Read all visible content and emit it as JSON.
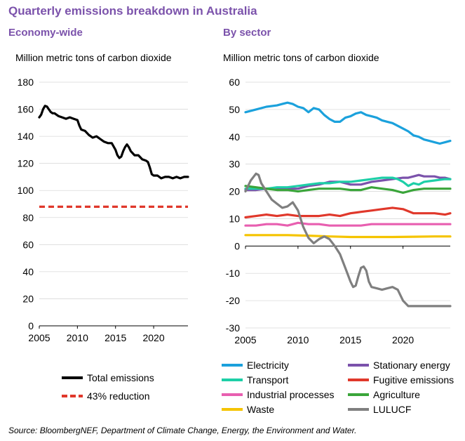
{
  "title": "Quarterly emissions breakdown in Australia",
  "source": "Source: BloombergNEF, Department of Climate Change, Energy, the Environment and Water.",
  "chart_data": [
    {
      "type": "line",
      "title": "Economy-wide",
      "ylabel": "Million metric tons of carbon dioxide",
      "xlabel": "",
      "xlim": [
        2005,
        2024.5
      ],
      "ylim": [
        0,
        180
      ],
      "xticks": [
        "2005",
        "2010",
        "2015",
        "2020"
      ],
      "yticks": [
        "0",
        "20",
        "40",
        "60",
        "80",
        "100",
        "120",
        "140",
        "160",
        "180"
      ],
      "grid": true,
      "legend": "bottom",
      "series": [
        {
          "name": "Total emissions",
          "color": "#000000",
          "style": "solid",
          "x": [
            2005,
            2005.25,
            2005.5,
            2005.75,
            2006,
            2006.25,
            2006.5,
            2006.75,
            2007,
            2007.5,
            2008,
            2008.5,
            2009,
            2009.5,
            2010,
            2010.25,
            2010.5,
            2011,
            2011.5,
            2012,
            2012.5,
            2013,
            2013.5,
            2014,
            2014.5,
            2015,
            2015.25,
            2015.5,
            2015.75,
            2016,
            2016.25,
            2016.5,
            2016.75,
            2017,
            2017.5,
            2018,
            2018.5,
            2019,
            2019.25,
            2019.5,
            2019.75,
            2020,
            2020.25,
            2020.5,
            2021,
            2021.5,
            2022,
            2022.5,
            2023,
            2023.5,
            2024,
            2024.5
          ],
          "values": [
            154,
            156,
            160,
            162.5,
            162,
            160,
            158,
            157,
            157,
            155,
            154,
            153,
            154,
            153,
            152,
            148,
            145,
            144,
            141,
            139,
            140,
            138,
            136,
            135,
            135,
            130,
            126,
            124,
            125,
            129,
            132,
            134,
            132,
            129,
            126,
            126,
            123,
            122,
            121,
            117,
            112,
            111,
            111,
            111,
            109,
            110,
            110,
            109,
            110,
            109,
            110,
            110
          ]
        },
        {
          "name": "43% reduction",
          "color": "#e0382b",
          "style": "dashed",
          "x": [
            2005,
            2024.5
          ],
          "values": [
            88,
            88
          ]
        }
      ]
    },
    {
      "type": "line",
      "title": "By sector",
      "ylabel": "Million metric tons of carbon dioxide",
      "xlabel": "",
      "xlim": [
        2005,
        2024.5
      ],
      "ylim": [
        -30,
        60
      ],
      "xticks": [
        "2005",
        "2010",
        "2015",
        "2020"
      ],
      "yticks": [
        "-30",
        "-20",
        "-10",
        "0",
        "10",
        "20",
        "30",
        "40",
        "50",
        "60"
      ],
      "grid": true,
      "legend": "bottom",
      "series": [
        {
          "name": "Electricity",
          "color": "#1ba1dc",
          "x": [
            2005,
            2006,
            2007,
            2008,
            2008.5,
            2009,
            2009.5,
            2010,
            2010.5,
            2011,
            2011.5,
            2012,
            2012.5,
            2013,
            2013.5,
            2014,
            2014.5,
            2015,
            2015.5,
            2016,
            2016.5,
            2017,
            2017.5,
            2018,
            2018.5,
            2019,
            2019.5,
            2020,
            2020.5,
            2021,
            2021.5,
            2022,
            2022.5,
            2023,
            2023.5,
            2024,
            2024.5
          ],
          "values": [
            49,
            50,
            51,
            51.5,
            52,
            52.5,
            52,
            51,
            50.5,
            49,
            50.5,
            50,
            48,
            46.5,
            45.5,
            45.5,
            47,
            47.5,
            48.5,
            49,
            48,
            47.5,
            47,
            46,
            45.5,
            45,
            44,
            43,
            42,
            40.5,
            40,
            39,
            38.5,
            38,
            37.5,
            38,
            38.5
          ]
        },
        {
          "name": "Stationary energy",
          "color": "#7b52ab",
          "x": [
            2005,
            2006,
            2007,
            2008,
            2009,
            2010,
            2011,
            2012,
            2013,
            2014,
            2015,
            2016,
            2017,
            2018,
            2019,
            2020,
            2020.5,
            2021,
            2021.5,
            2022,
            2022.5,
            2023,
            2023.5,
            2024,
            2024.5
          ],
          "values": [
            20.5,
            20.5,
            21,
            21,
            21,
            21,
            22,
            22.5,
            23.5,
            23.5,
            22.5,
            22.5,
            23.5,
            24,
            24.5,
            25,
            25,
            25.5,
            26,
            25.5,
            25.5,
            25.5,
            25,
            25,
            24.5
          ]
        },
        {
          "name": "Transport",
          "color": "#1dcfa7",
          "x": [
            2005,
            2006,
            2007,
            2008,
            2009,
            2010,
            2011,
            2012,
            2013,
            2014,
            2015,
            2016,
            2017,
            2018,
            2019,
            2019.5,
            2020,
            2020.5,
            2021,
            2021.5,
            2022,
            2023,
            2024,
            2024.5
          ],
          "values": [
            21,
            21,
            21,
            21.5,
            21.5,
            22,
            22.5,
            23,
            23,
            23.5,
            23.5,
            24,
            24.5,
            25,
            25,
            24.5,
            23.5,
            22,
            23,
            22.5,
            23.5,
            24,
            24.5,
            24.5
          ]
        },
        {
          "name": "Fugitive emissions",
          "color": "#e0382b",
          "x": [
            2005,
            2006,
            2007,
            2008,
            2009,
            2010,
            2011,
            2012,
            2013,
            2014,
            2015,
            2016,
            2017,
            2018,
            2019,
            2020,
            2021,
            2022,
            2023,
            2024,
            2024.5
          ],
          "values": [
            10.5,
            11,
            11.5,
            11,
            11.5,
            11,
            11,
            11,
            11.5,
            11,
            12,
            12.5,
            13,
            13.5,
            14,
            13.5,
            12,
            12,
            12,
            11.5,
            12
          ]
        },
        {
          "name": "Agriculture",
          "color": "#3aa53a",
          "x": [
            2005,
            2006,
            2007,
            2008,
            2009,
            2010,
            2011,
            2012,
            2013,
            2014,
            2015,
            2016,
            2017,
            2018,
            2019,
            2020,
            2021,
            2022,
            2023,
            2024,
            2024.5
          ],
          "values": [
            22,
            21.5,
            21,
            20.5,
            20.5,
            20,
            20.5,
            21,
            21,
            21,
            20.5,
            20.5,
            21.5,
            21,
            20.5,
            19.5,
            20.5,
            21,
            21,
            21,
            21
          ]
        },
        {
          "name": "Industrial processes",
          "color": "#e85fb0",
          "x": [
            2005,
            2006,
            2007,
            2008,
            2009,
            2010,
            2011,
            2012,
            2013,
            2014,
            2015,
            2016,
            2017,
            2018,
            2019,
            2020,
            2021,
            2022,
            2023,
            2024,
            2024.5
          ],
          "values": [
            7.5,
            7.5,
            8,
            8,
            7.5,
            8.5,
            8,
            8,
            7.5,
            7.5,
            7.5,
            7.5,
            8,
            8,
            8,
            8,
            8,
            8,
            8,
            8,
            8
          ]
        },
        {
          "name": "Waste",
          "color": "#f5c400",
          "x": [
            2005,
            2007,
            2009,
            2011,
            2013,
            2015,
            2017,
            2019,
            2021,
            2023,
            2024.5
          ],
          "values": [
            4,
            4,
            4,
            3.8,
            3.5,
            3.3,
            3.3,
            3.3,
            3.4,
            3.5,
            3.5
          ]
        },
        {
          "name": "LULUCF",
          "color": "#7f7f7f",
          "x": [
            2005,
            2005.5,
            2006,
            2006.25,
            2006.5,
            2007,
            2007.5,
            2008,
            2008.5,
            2009,
            2009.5,
            2010,
            2010.25,
            2010.5,
            2011,
            2011.5,
            2012,
            2012.5,
            2013,
            2013.5,
            2014,
            2014.5,
            2015,
            2015.25,
            2015.5,
            2015.75,
            2016,
            2016.25,
            2016.5,
            2016.75,
            2017,
            2017.5,
            2018,
            2018.5,
            2019,
            2019.5,
            2020,
            2020.5,
            2021,
            2021.5,
            2022,
            2022.5,
            2023,
            2023.5,
            2024,
            2024.5
          ],
          "values": [
            20,
            24,
            26.5,
            26,
            23,
            20,
            17,
            15.5,
            14,
            14.5,
            16,
            13,
            10,
            7,
            3,
            1,
            2.5,
            3.5,
            2.5,
            0,
            -3,
            -8,
            -13,
            -15,
            -14.5,
            -11,
            -8,
            -7.5,
            -9,
            -13,
            -15,
            -15.5,
            -16,
            -15.5,
            -15,
            -16,
            -20,
            -22,
            -22,
            -22,
            -22,
            -22,
            -22,
            -22,
            -22,
            -22
          ]
        }
      ]
    }
  ]
}
